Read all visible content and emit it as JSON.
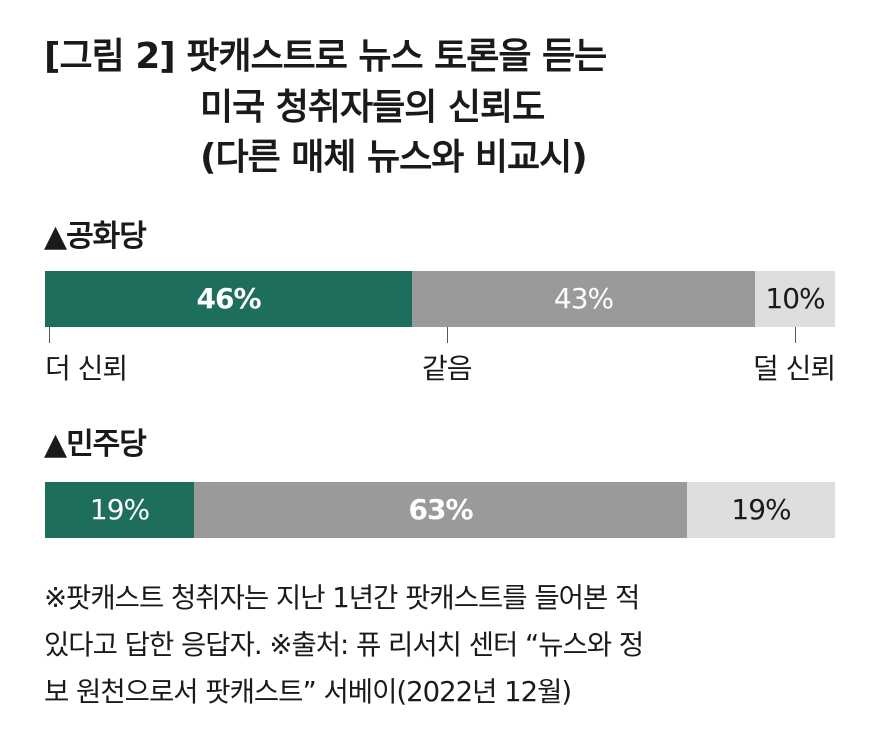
{
  "title_lines": [
    "[그림 2] 팟캐스트로 뉴스 토론을 듣는",
    "미국 청취자들의 신뢰도",
    "(다른 매체 뉴스와 비교시)"
  ],
  "chart_data": [
    {
      "type": "bar",
      "orientation": "horizontal-stacked",
      "group": "▲공화당",
      "categories": [
        "더 신뢰",
        "같음",
        "덜 신뢰"
      ],
      "values": [
        46,
        43,
        10
      ],
      "value_labels": [
        "46%",
        "43%",
        "10%"
      ],
      "tick_labels": [
        "더 신뢰",
        "같음",
        "덜 신뢰"
      ]
    },
    {
      "type": "bar",
      "orientation": "horizontal-stacked",
      "group": "▲민주당",
      "categories": [
        "더 신뢰",
        "같음",
        "덜 신뢰"
      ],
      "values": [
        19,
        63,
        19
      ],
      "value_labels": [
        "19%",
        "63%",
        "19%"
      ]
    }
  ],
  "colors": {
    "more_trust": "#1d6e5c",
    "same": "#9a9a9a",
    "less_trust": "#dedede",
    "text_dark": "#1a1a1a",
    "text_light": "#ffffff"
  },
  "note_lines": [
    "※팟캐스트 청취자는 지난 1년간 팟캐스트를 들어본 적",
    "있다고 답한 응답자. ※출처: 퓨 리서치 센터 “뉴스와 정",
    "보 원천으로서 팟캐스트” 서베이(2022년 12월)"
  ]
}
